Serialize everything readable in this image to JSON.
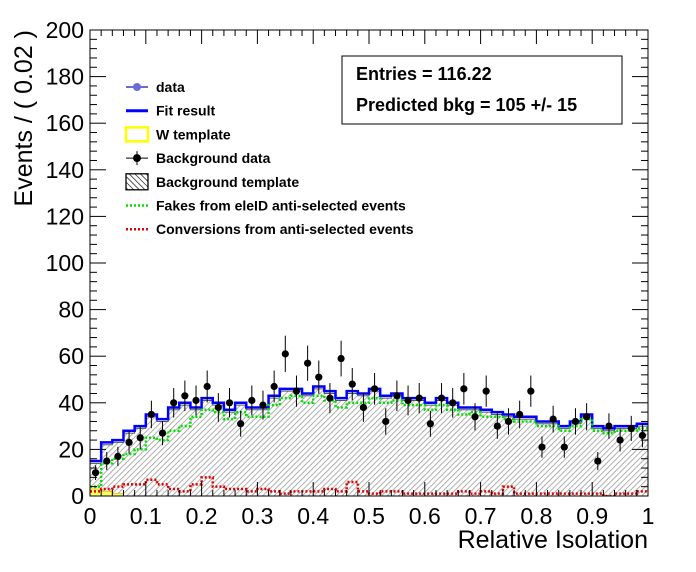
{
  "chart_data": {
    "type": "histogram",
    "xlabel": "Relative Isolation",
    "ylabel": "Events / ( 0.02 )",
    "xlim": [
      0,
      1
    ],
    "ylim": [
      0,
      200
    ],
    "x_ticks": [
      0,
      0.1,
      0.2,
      0.3,
      0.4,
      0.5,
      0.6,
      0.7,
      0.8,
      0.9,
      1
    ],
    "x_tick_labels": [
      "0",
      "0.1",
      "0.2",
      "0.3",
      "0.4",
      "0.5",
      "0.6",
      "0.7",
      "0.8",
      "0.9",
      "1"
    ],
    "y_ticks": [
      0,
      20,
      40,
      60,
      80,
      100,
      120,
      140,
      160,
      180,
      200
    ],
    "y_tick_labels": [
      "0",
      "20",
      "40",
      "60",
      "80",
      "100",
      "120",
      "140",
      "160",
      "180",
      "200"
    ],
    "bin_edges": [
      0,
      0.02,
      0.04,
      0.06,
      0.08,
      0.1,
      0.12,
      0.14,
      0.16,
      0.18,
      0.2,
      0.22,
      0.24,
      0.26,
      0.28,
      0.3,
      0.32,
      0.34,
      0.36,
      0.38,
      0.4,
      0.42,
      0.44,
      0.46,
      0.48,
      0.5,
      0.52,
      0.54,
      0.56,
      0.58,
      0.6,
      0.62,
      0.64,
      0.66,
      0.68,
      0.7,
      0.72,
      0.74,
      0.76,
      0.78,
      0.8,
      0.82,
      0.84,
      0.86,
      0.88,
      0.9,
      0.92,
      0.94,
      0.96,
      0.98,
      1.0
    ],
    "fit_result": [
      15,
      23,
      24,
      28,
      30,
      35,
      33,
      38,
      40,
      38,
      42,
      40,
      37,
      40,
      38,
      38,
      43,
      46,
      46,
      44,
      47,
      45,
      42,
      45,
      44,
      46,
      43,
      44,
      42,
      42,
      40,
      42,
      40,
      38,
      38,
      37,
      36,
      35,
      34,
      34,
      32,
      32,
      30,
      32,
      35,
      30,
      29,
      30,
      30,
      31
    ],
    "background_template": [
      14,
      22,
      23,
      27,
      29,
      34,
      32,
      37,
      39,
      37,
      41,
      39,
      36,
      39,
      37,
      37,
      42,
      45,
      45,
      43,
      46,
      44,
      41,
      44,
      43,
      45,
      42,
      43,
      41,
      41,
      39,
      41,
      39,
      37,
      37,
      36,
      35,
      34,
      33,
      33,
      31,
      31,
      29,
      31,
      34,
      29,
      28,
      29,
      29,
      30
    ],
    "fakes": [
      4,
      14,
      16,
      18,
      20,
      25,
      24,
      28,
      30,
      34,
      37,
      36,
      33,
      36,
      34,
      34,
      39,
      42,
      43,
      40,
      43,
      41,
      38,
      40,
      40,
      42,
      40,
      41,
      39,
      39,
      37,
      39,
      37,
      35,
      36,
      34,
      34,
      33,
      32,
      32,
      30,
      30,
      28,
      30,
      33,
      28,
      27,
      28,
      28,
      29
    ],
    "conversions": [
      2,
      3,
      4,
      5,
      5,
      7,
      5,
      3,
      2,
      5,
      8,
      4,
      3,
      3,
      2,
      3,
      2,
      1,
      2,
      2,
      2,
      3,
      2,
      6,
      2,
      1,
      2,
      2,
      1,
      1,
      1,
      1,
      1,
      2,
      1,
      2,
      1,
      4,
      1,
      1,
      1,
      1,
      1,
      1,
      1,
      1,
      0,
      1,
      1,
      2
    ],
    "w_template": [
      3,
      2,
      1,
      0,
      0,
      0,
      0,
      0,
      0,
      0,
      0,
      0,
      0,
      0,
      0,
      0,
      0,
      0,
      0,
      0,
      0,
      0,
      0,
      0,
      0,
      0,
      0,
      0,
      0,
      0,
      0,
      0,
      0,
      0,
      0,
      0,
      0,
      0,
      0,
      0,
      0,
      0,
      0,
      0,
      0,
      0,
      0,
      0,
      0,
      0
    ],
    "background_data": {
      "x": [
        0.01,
        0.03,
        0.05,
        0.07,
        0.09,
        0.11,
        0.13,
        0.15,
        0.17,
        0.19,
        0.21,
        0.23,
        0.25,
        0.27,
        0.29,
        0.31,
        0.33,
        0.35,
        0.37,
        0.39,
        0.41,
        0.43,
        0.45,
        0.47,
        0.49,
        0.51,
        0.53,
        0.55,
        0.57,
        0.59,
        0.61,
        0.63,
        0.65,
        0.67,
        0.69,
        0.71,
        0.73,
        0.75,
        0.77,
        0.79,
        0.81,
        0.83,
        0.85,
        0.87,
        0.89,
        0.91,
        0.93,
        0.95,
        0.97,
        0.99
      ],
      "y": [
        10,
        15,
        17,
        23,
        25,
        35,
        27,
        40,
        43,
        41,
        47,
        38,
        40,
        31,
        41,
        39,
        47,
        61,
        45,
        57,
        51,
        42,
        59,
        48,
        38,
        46,
        32,
        43,
        41,
        42,
        31,
        42,
        40,
        46,
        34,
        45,
        30,
        32,
        35,
        45,
        21,
        33,
        21,
        32,
        34,
        15,
        30,
        24,
        29,
        26
      ]
    },
    "legend": [
      {
        "label": "data",
        "style": "marker-line",
        "color": "#6b6bd6"
      },
      {
        "label": "Fit result",
        "style": "line",
        "color": "#0000ff"
      },
      {
        "label": "W template",
        "style": "box",
        "color": "#ffff00"
      },
      {
        "label": "Background data",
        "style": "marker-errorbar",
        "color": "#000000"
      },
      {
        "label": "Background template",
        "style": "hatched-box",
        "color": "#000000"
      },
      {
        "label": "Fakes from eleID anti-selected events",
        "style": "dotted",
        "color": "#00e000"
      },
      {
        "label": "Conversions from anti-selected events",
        "style": "dotted",
        "color": "#e00000"
      }
    ],
    "stats_box": {
      "entries": "Entries =  116.22",
      "predicted": "Predicted bkg = 105 +/- 15"
    },
    "legend_placement": "top-left",
    "grid": false
  }
}
